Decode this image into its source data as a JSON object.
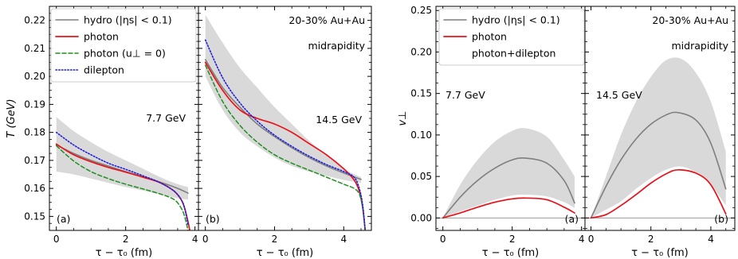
{
  "colors": {
    "hydro": "#7f7f7f",
    "photon": "#e8131a",
    "photon_uperp0": "#1f8f1f",
    "dilepton": "#1f1fdc",
    "band": "#d9d9d9",
    "zero_line": "#9a9a9a"
  },
  "chart_data": [
    {
      "type": "line",
      "panel": "(a)",
      "annotations": [
        "7.7 GeV"
      ],
      "xlabel": "τ − τ₀ (fm)",
      "ylabel": "T (GeV)",
      "xlim": [
        -0.2,
        4.1
      ],
      "ylim": [
        0.145,
        0.225
      ],
      "xticks": [
        "0",
        "2",
        "4"
      ],
      "yticks": [
        "0.15",
        "0.16",
        "0.17",
        "0.18",
        "0.19",
        "0.20",
        "0.21",
        "0.22"
      ],
      "band": {
        "x": [
          0,
          0.5,
          1,
          1.5,
          2,
          2.5,
          3,
          3.5,
          3.8
        ],
        "upper": [
          0.1855,
          0.1805,
          0.1765,
          0.173,
          0.17,
          0.167,
          0.164,
          0.1615,
          0.1605
        ],
        "lower": [
          0.166,
          0.165,
          0.1635,
          0.162,
          0.1605,
          0.1592,
          0.1578,
          0.1565,
          0.156
        ]
      },
      "series": [
        {
          "key": "hydro",
          "style": "solid",
          "x": [
            0,
            0.5,
            1,
            1.5,
            2,
            2.5,
            3,
            3.5,
            3.8
          ],
          "y": [
            0.1755,
            0.1725,
            0.17,
            0.168,
            0.166,
            0.1642,
            0.1622,
            0.16,
            0.1583
          ]
        },
        {
          "key": "photon",
          "style": "solid",
          "x": [
            0,
            0.5,
            1,
            1.5,
            2,
            2.5,
            3,
            3.4,
            3.6,
            3.7,
            3.8,
            3.85
          ],
          "y": [
            0.1758,
            0.172,
            0.1695,
            0.1675,
            0.1658,
            0.164,
            0.162,
            0.159,
            0.156,
            0.153,
            0.148,
            0.145
          ]
        },
        {
          "key": "photon_uperp0",
          "style": "dashed",
          "x": [
            0,
            0.5,
            1,
            1.5,
            2,
            2.5,
            3,
            3.4,
            3.6,
            3.7,
            3.8
          ],
          "y": [
            0.1752,
            0.1698,
            0.166,
            0.1635,
            0.1615,
            0.1598,
            0.158,
            0.156,
            0.153,
            0.15,
            0.145
          ]
        },
        {
          "key": "dilepton",
          "style": "dotted",
          "x": [
            0,
            0.5,
            1,
            1.5,
            2,
            2.5,
            3,
            3.4,
            3.6,
            3.7,
            3.8
          ],
          "y": [
            0.18,
            0.1755,
            0.172,
            0.169,
            0.1668,
            0.1645,
            0.162,
            0.159,
            0.156,
            0.153,
            0.147
          ]
        }
      ]
    },
    {
      "type": "line",
      "panel": "(b)",
      "annotations": [
        "20-30% Au+Au",
        "midrapidity",
        "14.5 GeV"
      ],
      "xlabel": "τ − τ₀ (fm)",
      "xlim": [
        -0.2,
        4.8
      ],
      "ylim": [
        0.145,
        0.225
      ],
      "xticks": [
        "0",
        "2",
        "4"
      ],
      "band": {
        "x": [
          0,
          0.5,
          1,
          1.5,
          2,
          2.5,
          3,
          3.5,
          4,
          4.5
        ],
        "upper": [
          0.222,
          0.212,
          0.203,
          0.196,
          0.189,
          0.183,
          0.177,
          0.172,
          0.167,
          0.164
        ],
        "lower": [
          0.2,
          0.188,
          0.18,
          0.175,
          0.171,
          0.168,
          0.166,
          0.1645,
          0.163,
          0.162
        ]
      },
      "series": [
        {
          "key": "hydro",
          "style": "solid",
          "x": [
            0,
            0.5,
            1,
            1.5,
            2,
            2.5,
            3,
            3.5,
            4,
            4.5
          ],
          "y": [
            0.206,
            0.196,
            0.189,
            0.183,
            0.1785,
            0.1745,
            0.171,
            0.168,
            0.1655,
            0.1632
          ]
        },
        {
          "key": "photon",
          "style": "solid",
          "x": [
            0,
            0.5,
            1,
            1.5,
            2,
            2.5,
            3,
            3.5,
            4,
            4.3,
            4.45,
            4.55,
            4.62
          ],
          "y": [
            0.205,
            0.195,
            0.188,
            0.185,
            0.183,
            0.18,
            0.176,
            0.172,
            0.167,
            0.163,
            0.159,
            0.153,
            0.145
          ]
        },
        {
          "key": "photon_uperp0",
          "style": "dashed",
          "x": [
            0,
            0.5,
            1,
            1.5,
            2,
            2.5,
            3,
            3.5,
            4,
            4.3,
            4.45,
            4.55,
            4.62
          ],
          "y": [
            0.204,
            0.191,
            0.1825,
            0.1765,
            0.172,
            0.169,
            0.1665,
            0.164,
            0.1615,
            0.16,
            0.158,
            0.153,
            0.145
          ]
        },
        {
          "key": "dilepton",
          "style": "dotted",
          "x": [
            0,
            0.5,
            1,
            1.5,
            2,
            2.5,
            3,
            3.5,
            4,
            4.3,
            4.45,
            4.55,
            4.62
          ],
          "y": [
            0.213,
            0.1995,
            0.1905,
            0.184,
            0.179,
            0.175,
            0.1715,
            0.1685,
            0.166,
            0.164,
            0.16,
            0.154,
            0.145
          ]
        }
      ]
    },
    {
      "type": "line",
      "panel": "(a)",
      "annotations": [
        "7.7 GeV"
      ],
      "xlabel": "τ − τ₀ (fm)",
      "ylabel": "v⊥",
      "xlim": [
        -0.2,
        4.1
      ],
      "ylim": [
        -0.015,
        0.255
      ],
      "xticks": [
        "0",
        "2",
        "4"
      ],
      "yticks": [
        "0.00",
        "0.05",
        "0.10",
        "0.15",
        "0.20",
        "0.25"
      ],
      "band": {
        "x": [
          0,
          0.5,
          1,
          1.5,
          2,
          2.4,
          3,
          3.5,
          3.8
        ],
        "upper": [
          0.0,
          0.04,
          0.07,
          0.092,
          0.105,
          0.108,
          0.098,
          0.07,
          0.05
        ],
        "lower": [
          0.0,
          0.008,
          0.015,
          0.022,
          0.027,
          0.028,
          0.026,
          0.019,
          0.012
        ]
      },
      "series": [
        {
          "key": "hydro",
          "style": "solid",
          "x": [
            0,
            0.5,
            1,
            1.5,
            2,
            2.4,
            3,
            3.5,
            3.8
          ],
          "y": [
            0.0,
            0.025,
            0.045,
            0.06,
            0.07,
            0.072,
            0.066,
            0.045,
            0.018
          ]
        },
        {
          "key": "photon",
          "style": "solid",
          "x": [
            0,
            0.5,
            1,
            1.5,
            2,
            2.4,
            3,
            3.5,
            3.8
          ],
          "y": [
            0.0,
            0.006,
            0.013,
            0.019,
            0.023,
            0.024,
            0.022,
            0.013,
            0.006
          ]
        },
        {
          "key": "photon_dilepton",
          "style": "dotted",
          "x": [
            0,
            0.5,
            1,
            1.5,
            2,
            2.4,
            3,
            3.5,
            3.8
          ],
          "y": [
            -0.004,
            0.004,
            0.012,
            0.019,
            0.023,
            0.025,
            0.022,
            0.012,
            -0.01
          ]
        }
      ]
    },
    {
      "type": "line",
      "panel": "(b)",
      "annotations": [
        "20-30% Au+Au",
        "midrapidity",
        "14.5 GeV"
      ],
      "xlabel": "τ − τ₀ (fm)",
      "xlim": [
        -0.2,
        4.8
      ],
      "ylim": [
        -0.015,
        0.255
      ],
      "xticks": [
        "0",
        "2",
        "4"
      ],
      "band": {
        "x": [
          0,
          0.5,
          1,
          1.5,
          2,
          2.5,
          3,
          3.5,
          4,
          4.5
        ],
        "upper": [
          0.0,
          0.05,
          0.1,
          0.14,
          0.17,
          0.19,
          0.192,
          0.175,
          0.14,
          0.08
        ],
        "lower": [
          0.0,
          0.01,
          0.02,
          0.035,
          0.048,
          0.058,
          0.062,
          0.055,
          0.04,
          0.015
        ]
      },
      "series": [
        {
          "key": "hydro",
          "style": "solid",
          "x": [
            0,
            0.5,
            1,
            1.5,
            2,
            2.5,
            2.9,
            3.5,
            4,
            4.5
          ],
          "y": [
            0.0,
            0.038,
            0.07,
            0.095,
            0.113,
            0.124,
            0.127,
            0.118,
            0.09,
            0.035
          ]
        },
        {
          "key": "photon",
          "style": "solid",
          "x": [
            0,
            0.5,
            1,
            1.5,
            2,
            2.5,
            2.9,
            3.5,
            4,
            4.5
          ],
          "y": [
            0.0,
            0.004,
            0.015,
            0.028,
            0.042,
            0.053,
            0.058,
            0.054,
            0.04,
            0.005
          ]
        },
        {
          "key": "photon_dilepton",
          "style": "dotted",
          "x": [
            0,
            0.5,
            1,
            1.5,
            2,
            2.5,
            2.9,
            3.5,
            4,
            4.5
          ],
          "y": [
            -0.012,
            0.003,
            0.016,
            0.03,
            0.045,
            0.057,
            0.063,
            0.06,
            0.045,
            0.008
          ]
        }
      ]
    }
  ],
  "legends": {
    "temperature": [
      {
        "key": "hydro",
        "label": "hydro (|ηs| < 0.1)"
      },
      {
        "key": "photon",
        "label": "photon"
      },
      {
        "key": "photon_uperp0",
        "label": "photon (u⊥ = 0)"
      },
      {
        "key": "dilepton",
        "label": "dilepton"
      }
    ],
    "flow": [
      {
        "key": "hydro",
        "label": "hydro (|ηs| < 0.1)"
      },
      {
        "key": "photon",
        "label": "photon"
      },
      {
        "key": "photon_dilepton",
        "label": "photon+dilepton"
      }
    ]
  }
}
